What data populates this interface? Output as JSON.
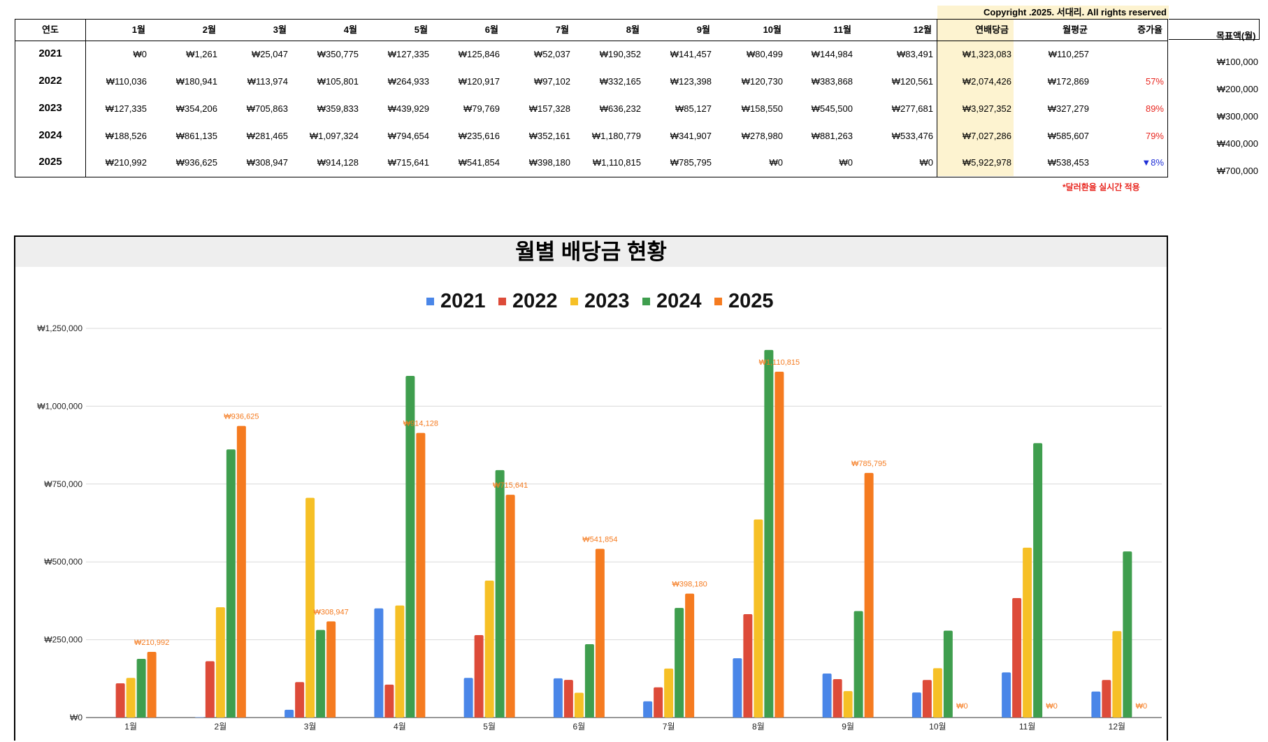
{
  "copyright": "Copyright .2025. 서대리. All rights reserved",
  "table": {
    "headers": [
      "연도",
      "1월",
      "2월",
      "3월",
      "4월",
      "5월",
      "6월",
      "7월",
      "8월",
      "9월",
      "10월",
      "11월",
      "12월",
      "연배당금",
      "월평균",
      "증가율"
    ],
    "rows": [
      {
        "year": "2021",
        "months": [
          "₩0",
          "₩1,261",
          "₩25,047",
          "₩350,775",
          "₩127,335",
          "₩125,846",
          "₩52,037",
          "₩190,352",
          "₩141,457",
          "₩80,499",
          "₩144,984",
          "₩83,491"
        ],
        "annual": "₩1,323,083",
        "avg": "₩110,257",
        "growth": "",
        "growth_dir": ""
      },
      {
        "year": "2022",
        "months": [
          "₩110,036",
          "₩180,941",
          "₩113,974",
          "₩105,801",
          "₩264,933",
          "₩120,917",
          "₩97,102",
          "₩332,165",
          "₩123,398",
          "₩120,730",
          "₩383,868",
          "₩120,561"
        ],
        "annual": "₩2,074,426",
        "avg": "₩172,869",
        "growth": "57%",
        "growth_dir": "up"
      },
      {
        "year": "2023",
        "months": [
          "₩127,335",
          "₩354,206",
          "₩705,863",
          "₩359,833",
          "₩439,929",
          "₩79,769",
          "₩157,328",
          "₩636,232",
          "₩85,127",
          "₩158,550",
          "₩545,500",
          "₩277,681"
        ],
        "annual": "₩3,927,352",
        "avg": "₩327,279",
        "growth": "89%",
        "growth_dir": "up"
      },
      {
        "year": "2024",
        "months": [
          "₩188,526",
          "₩861,135",
          "₩281,465",
          "₩1,097,324",
          "₩794,654",
          "₩235,616",
          "₩352,161",
          "₩1,180,779",
          "₩341,907",
          "₩278,980",
          "₩881,263",
          "₩533,476"
        ],
        "annual": "₩7,027,286",
        "avg": "₩585,607",
        "growth": "79%",
        "growth_dir": "up"
      },
      {
        "year": "2025",
        "months": [
          "₩210,992",
          "₩936,625",
          "₩308,947",
          "₩914,128",
          "₩715,641",
          "₩541,854",
          "₩398,180",
          "₩1,110,815",
          "₩785,795",
          "₩0",
          "₩0",
          "₩0"
        ],
        "annual": "₩5,922,978",
        "avg": "₩538,453",
        "growth": "▼8%",
        "growth_dir": "down"
      }
    ]
  },
  "targets": {
    "header": "목표액(월)",
    "values": [
      "₩100,000",
      "₩200,000",
      "₩300,000",
      "₩400,000",
      "₩700,000"
    ]
  },
  "note": "*달러환율 실시간 적용",
  "colors": {
    "2021": "#4a86e8",
    "2022": "#dd4b39",
    "2023": "#f6c026",
    "2024": "#3f9e4e",
    "2025": "#f57b20",
    "highlight": "#fdf3d0",
    "up": "#e8261f",
    "down": "#1f2fd6"
  },
  "chart_data": {
    "type": "bar",
    "title": "월별 배당금 현황",
    "categories": [
      "1월",
      "2월",
      "3월",
      "4월",
      "5월",
      "6월",
      "7월",
      "8월",
      "9월",
      "10월",
      "11월",
      "12월"
    ],
    "series": [
      {
        "name": "2021",
        "values": [
          0,
          1261,
          25047,
          350775,
          127335,
          125846,
          52037,
          190352,
          141457,
          80499,
          144984,
          83491
        ]
      },
      {
        "name": "2022",
        "values": [
          110036,
          180941,
          113974,
          105801,
          264933,
          120917,
          97102,
          332165,
          123398,
          120730,
          383868,
          120561
        ]
      },
      {
        "name": "2023",
        "values": [
          127335,
          354206,
          705863,
          359833,
          439929,
          79769,
          157328,
          636232,
          85127,
          158550,
          545500,
          277681
        ]
      },
      {
        "name": "2024",
        "values": [
          188526,
          861135,
          281465,
          1097324,
          794654,
          235616,
          352161,
          1180779,
          341907,
          278980,
          881263,
          533476
        ]
      },
      {
        "name": "2025",
        "values": [
          210992,
          936625,
          308947,
          914128,
          715641,
          541854,
          398180,
          1110815,
          785795,
          0,
          0,
          0
        ]
      }
    ],
    "data_labels_series": "2025",
    "data_labels": [
      "₩210,992",
      "₩936,625",
      "₩308,947",
      "₩914,128",
      "₩715,641",
      "₩541,854",
      "₩398,180",
      "₩1,110,815",
      "₩785,795",
      "₩0",
      "₩0",
      "₩0"
    ],
    "yticks": [
      "₩0",
      "₩250,000",
      "₩500,000",
      "₩750,000",
      "₩1,000,000",
      "₩1,250,000"
    ],
    "ylim": [
      0,
      1250000
    ],
    "grid": true,
    "legend_position": "top-center"
  }
}
